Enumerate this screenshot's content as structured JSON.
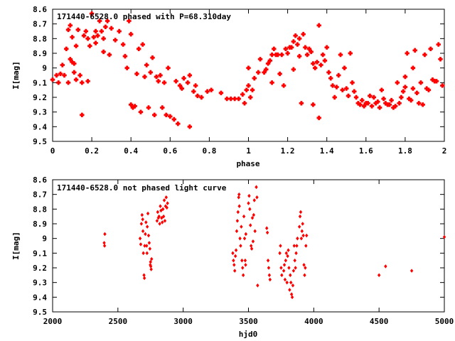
{
  "chart_data": [
    {
      "type": "scatter",
      "title": "171440-6528.0 phased with P=68.310day",
      "xlabel": "phase",
      "ylabel": "I[mag]",
      "xlim": [
        0,
        2
      ],
      "ylim": [
        9.5,
        8.6
      ],
      "y_inverted": true,
      "xticks": [
        0,
        0.2,
        0.4,
        0.6,
        0.8,
        1,
        1.2,
        1.4,
        1.6,
        1.8,
        2
      ],
      "xtick_labels": [
        "0",
        "0.2",
        "0.4",
        "0.6",
        "0.8",
        "1",
        "1.2",
        "1.4",
        "1.6",
        "1.8",
        "2"
      ],
      "yticks": [
        8.6,
        8.7,
        8.8,
        8.9,
        9.0,
        9.1,
        9.2,
        9.3,
        9.4,
        9.5
      ],
      "ytick_labels": [
        "8.6",
        "8.7",
        "8.8",
        "8.9",
        "9",
        "9.1",
        "9.2",
        "9.3",
        "9.4",
        "9.5"
      ],
      "grid": false,
      "color": "#ff0000",
      "marker": "cross",
      "points": [
        [
          0.0,
          9.08
        ],
        [
          0.02,
          9.05
        ],
        [
          0.03,
          9.1
        ],
        [
          0.04,
          9.04
        ],
        [
          0.05,
          8.98
        ],
        [
          0.06,
          9.05
        ],
        [
          0.07,
          8.87
        ],
        [
          0.08,
          8.74
        ],
        [
          0.08,
          9.1
        ],
        [
          0.09,
          8.94
        ],
        [
          0.09,
          8.71
        ],
        [
          0.1,
          8.96
        ],
        [
          0.1,
          8.79
        ],
        [
          0.11,
          9.03
        ],
        [
          0.11,
          8.97
        ],
        [
          0.12,
          8.85
        ],
        [
          0.12,
          9.08
        ],
        [
          0.13,
          8.74
        ],
        [
          0.14,
          9.05
        ],
        [
          0.15,
          9.1
        ],
        [
          0.15,
          9.32
        ],
        [
          0.16,
          8.78
        ],
        [
          0.17,
          8.75
        ],
        [
          0.18,
          9.09
        ],
        [
          0.18,
          8.8
        ],
        [
          0.19,
          8.85
        ],
        [
          0.2,
          8.63
        ],
        [
          0.21,
          8.79
        ],
        [
          0.22,
          8.83
        ],
        [
          0.22,
          8.75
        ],
        [
          0.23,
          8.78
        ],
        [
          0.24,
          8.68
        ],
        [
          0.25,
          8.75
        ],
        [
          0.26,
          8.8
        ],
        [
          0.26,
          8.89
        ],
        [
          0.27,
          8.72
        ],
        [
          0.28,
          8.68
        ],
        [
          0.29,
          8.91
        ],
        [
          0.3,
          8.73
        ],
        [
          0.32,
          8.81
        ],
        [
          0.34,
          8.75
        ],
        [
          0.36,
          8.84
        ],
        [
          0.37,
          8.92
        ],
        [
          0.38,
          9.0
        ],
        [
          0.39,
          8.68
        ],
        [
          0.4,
          9.25
        ],
        [
          0.4,
          8.77
        ],
        [
          0.41,
          9.27
        ],
        [
          0.42,
          9.26
        ],
        [
          0.43,
          9.04
        ],
        [
          0.44,
          8.87
        ],
        [
          0.45,
          9.3
        ],
        [
          0.46,
          8.84
        ],
        [
          0.47,
          9.06
        ],
        [
          0.48,
          8.98
        ],
        [
          0.49,
          9.27
        ],
        [
          0.5,
          9.03
        ],
        [
          0.51,
          8.93
        ],
        [
          0.52,
          9.32
        ],
        [
          0.53,
          9.06
        ],
        [
          0.54,
          9.09
        ],
        [
          0.55,
          9.05
        ],
        [
          0.56,
          9.27
        ],
        [
          0.57,
          9.1
        ],
        [
          0.58,
          9.32
        ],
        [
          0.59,
          9.0
        ],
        [
          0.6,
          9.33
        ],
        [
          0.62,
          9.35
        ],
        [
          0.63,
          9.09
        ],
        [
          0.64,
          9.38
        ],
        [
          0.65,
          9.12
        ],
        [
          0.66,
          9.14
        ],
        [
          0.67,
          9.07
        ],
        [
          0.69,
          9.1
        ],
        [
          0.7,
          9.4
        ],
        [
          0.7,
          9.05
        ],
        [
          0.72,
          9.16
        ],
        [
          0.73,
          9.12
        ],
        [
          0.74,
          9.19
        ],
        [
          0.76,
          9.2
        ],
        [
          0.79,
          9.16
        ],
        [
          0.81,
          9.15
        ],
        [
          0.86,
          9.17
        ],
        [
          0.89,
          9.21
        ],
        [
          0.91,
          9.21
        ],
        [
          0.93,
          9.21
        ],
        [
          0.95,
          9.21
        ],
        [
          0.97,
          9.18
        ],
        [
          0.98,
          9.24
        ],
        [
          0.99,
          9.15
        ],
        [
          1.0,
          9.12
        ],
        [
          1.0,
          9.0
        ],
        [
          1.01,
          9.2
        ],
        [
          1.02,
          9.15
        ],
        [
          1.03,
          9.07
        ],
        [
          1.05,
          9.03
        ],
        [
          1.06,
          8.94
        ],
        [
          1.08,
          9.03
        ],
        [
          1.09,
          9.01
        ],
        [
          1.1,
          8.97
        ],
        [
          1.11,
          8.95
        ],
        [
          1.12,
          8.91
        ],
        [
          1.12,
          9.1
        ],
        [
          1.13,
          8.87
        ],
        [
          1.14,
          8.91
        ],
        [
          1.15,
          8.91
        ],
        [
          1.16,
          9.04
        ],
        [
          1.17,
          8.91
        ],
        [
          1.18,
          9.12
        ],
        [
          1.19,
          8.87
        ],
        [
          1.2,
          8.9
        ],
        [
          1.21,
          8.86
        ],
        [
          1.22,
          8.86
        ],
        [
          1.23,
          8.82
        ],
        [
          1.23,
          9.01
        ],
        [
          1.24,
          8.78
        ],
        [
          1.25,
          8.84
        ],
        [
          1.26,
          8.8
        ],
        [
          1.26,
          8.92
        ],
        [
          1.27,
          9.24
        ],
        [
          1.28,
          8.77
        ],
        [
          1.29,
          8.86
        ],
        [
          1.3,
          8.91
        ],
        [
          1.31,
          8.87
        ],
        [
          1.32,
          8.89
        ],
        [
          1.33,
          8.97
        ],
        [
          1.33,
          9.25
        ],
        [
          1.34,
          9.0
        ],
        [
          1.35,
          8.96
        ],
        [
          1.36,
          8.71
        ],
        [
          1.36,
          9.34
        ],
        [
          1.37,
          8.98
        ],
        [
          1.38,
          8.91
        ],
        [
          1.39,
          8.95
        ],
        [
          1.4,
          8.86
        ],
        [
          1.41,
          9.03
        ],
        [
          1.42,
          9.07
        ],
        [
          1.43,
          9.12
        ],
        [
          1.44,
          9.2
        ],
        [
          1.45,
          9.13
        ],
        [
          1.46,
          9.05
        ],
        [
          1.47,
          8.91
        ],
        [
          1.48,
          9.15
        ],
        [
          1.49,
          9.0
        ],
        [
          1.5,
          9.14
        ],
        [
          1.51,
          9.19
        ],
        [
          1.52,
          8.9
        ],
        [
          1.53,
          9.1
        ],
        [
          1.54,
          9.16
        ],
        [
          1.55,
          9.2
        ],
        [
          1.56,
          9.24
        ],
        [
          1.57,
          9.25
        ],
        [
          1.58,
          9.22
        ],
        [
          1.59,
          9.26
        ],
        [
          1.6,
          9.24
        ],
        [
          1.61,
          9.24
        ],
        [
          1.62,
          9.19
        ],
        [
          1.63,
          9.26
        ],
        [
          1.64,
          9.2
        ],
        [
          1.65,
          9.24
        ],
        [
          1.66,
          9.23
        ],
        [
          1.67,
          9.27
        ],
        [
          1.68,
          9.15
        ],
        [
          1.69,
          9.21
        ],
        [
          1.7,
          9.24
        ],
        [
          1.71,
          9.25
        ],
        [
          1.72,
          9.25
        ],
        [
          1.73,
          9.22
        ],
        [
          1.74,
          9.27
        ],
        [
          1.75,
          9.26
        ],
        [
          1.76,
          9.1
        ],
        [
          1.77,
          9.24
        ],
        [
          1.78,
          9.2
        ],
        [
          1.79,
          9.16
        ],
        [
          1.8,
          9.13
        ],
        [
          1.8,
          9.06
        ],
        [
          1.81,
          8.9
        ],
        [
          1.82,
          9.21
        ],
        [
          1.83,
          9.22
        ],
        [
          1.84,
          9.0
        ],
        [
          1.84,
          9.14
        ],
        [
          1.85,
          8.88
        ],
        [
          1.86,
          9.17
        ],
        [
          1.87,
          9.24
        ],
        [
          1.88,
          9.1
        ],
        [
          1.89,
          9.25
        ],
        [
          1.9,
          8.91
        ],
        [
          1.91,
          9.14
        ],
        [
          1.92,
          9.15
        ],
        [
          1.93,
          8.87
        ],
        [
          1.94,
          9.08
        ],
        [
          1.95,
          9.09
        ],
        [
          1.96,
          9.09
        ],
        [
          1.97,
          8.84
        ],
        [
          1.98,
          8.94
        ],
        [
          1.99,
          9.12
        ]
      ]
    },
    {
      "type": "scatter",
      "title": "171440-6528.0 not phased light curve",
      "xlabel": "hjd0",
      "ylabel": "I[mag]",
      "xlim": [
        2000,
        5000
      ],
      "ylim": [
        9.5,
        8.6
      ],
      "y_inverted": true,
      "xticks": [
        2000,
        2500,
        3000,
        3500,
        4000,
        4500,
        5000
      ],
      "xtick_labels": [
        "2000",
        "2500",
        "3000",
        "3500",
        "4000",
        "4500",
        "5000"
      ],
      "yticks": [
        8.6,
        8.7,
        8.8,
        8.9,
        9.0,
        9.1,
        9.2,
        9.3,
        9.4,
        9.5
      ],
      "ytick_labels": [
        "8.6",
        "8.7",
        "8.8",
        "8.9",
        "9",
        "9.1",
        "9.2",
        "9.3",
        "9.4",
        "9.5"
      ],
      "grid": false,
      "color": "#ff0000",
      "marker": "diamond",
      "points": [
        [
          2395,
          9.03
        ],
        [
          2398,
          9.05
        ],
        [
          2400,
          8.97
        ],
        [
          2670,
          9.0
        ],
        [
          2675,
          9.04
        ],
        [
          2680,
          8.9
        ],
        [
          2685,
          8.84
        ],
        [
          2690,
          8.87
        ],
        [
          2692,
          8.95
        ],
        [
          2695,
          9.1
        ],
        [
          2700,
          9.25
        ],
        [
          2703,
          9.27
        ],
        [
          2705,
          9.05
        ],
        [
          2710,
          8.97
        ],
        [
          2715,
          8.89
        ],
        [
          2720,
          9.05
        ],
        [
          2723,
          9.1
        ],
        [
          2725,
          8.92
        ],
        [
          2730,
          8.83
        ],
        [
          2735,
          8.98
        ],
        [
          2740,
          9.03
        ],
        [
          2745,
          9.07
        ],
        [
          2748,
          9.18
        ],
        [
          2750,
          9.16
        ],
        [
          2752,
          9.19
        ],
        [
          2755,
          9.21
        ],
        [
          2758,
          9.14
        ],
        [
          2800,
          8.88
        ],
        [
          2805,
          8.82
        ],
        [
          2810,
          8.86
        ],
        [
          2815,
          8.85
        ],
        [
          2820,
          8.9
        ],
        [
          2825,
          8.78
        ],
        [
          2830,
          8.81
        ],
        [
          2835,
          8.86
        ],
        [
          2840,
          8.89
        ],
        [
          2845,
          8.8
        ],
        [
          2850,
          8.85
        ],
        [
          2855,
          8.74
        ],
        [
          2860,
          8.88
        ],
        [
          2865,
          8.78
        ],
        [
          2870,
          8.72
        ],
        [
          2875,
          8.79
        ],
        [
          2880,
          8.76
        ],
        [
          3380,
          9.1
        ],
        [
          3385,
          9.15
        ],
        [
          3390,
          9.18
        ],
        [
          3395,
          9.22
        ],
        [
          3400,
          9.12
        ],
        [
          3405,
          9.08
        ],
        [
          3410,
          8.95
        ],
        [
          3415,
          8.88
        ],
        [
          3420,
          8.82
        ],
        [
          3425,
          8.72
        ],
        [
          3428,
          8.7
        ],
        [
          3430,
          8.78
        ],
        [
          3435,
          9.0
        ],
        [
          3440,
          9.05
        ],
        [
          3445,
          8.92
        ],
        [
          3450,
          9.15
        ],
        [
          3455,
          9.2
        ],
        [
          3460,
          9.25
        ],
        [
          3465,
          8.85
        ],
        [
          3470,
          9.0
        ],
        [
          3475,
          9.15
        ],
        [
          3478,
          9.18
        ],
        [
          3480,
          8.97
        ],
        [
          3500,
          8.76
        ],
        [
          3505,
          8.71
        ],
        [
          3510,
          8.8
        ],
        [
          3515,
          8.91
        ],
        [
          3520,
          9.05
        ],
        [
          3525,
          9.07
        ],
        [
          3530,
          8.86
        ],
        [
          3535,
          9.02
        ],
        [
          3540,
          8.84
        ],
        [
          3545,
          8.74
        ],
        [
          3550,
          8.95
        ],
        [
          3560,
          8.65
        ],
        [
          3565,
          8.72
        ],
        [
          3570,
          9.32
        ],
        [
          3640,
          8.93
        ],
        [
          3645,
          8.96
        ],
        [
          3650,
          9.15
        ],
        [
          3655,
          9.2
        ],
        [
          3660,
          9.25
        ],
        [
          3665,
          9.28
        ],
        [
          3740,
          9.1
        ],
        [
          3745,
          9.05
        ],
        [
          3750,
          9.2
        ],
        [
          3755,
          9.25
        ],
        [
          3770,
          9.22
        ],
        [
          3775,
          9.18
        ],
        [
          3780,
          9.28
        ],
        [
          3785,
          9.15
        ],
        [
          3790,
          9.1
        ],
        [
          3795,
          9.3
        ],
        [
          3800,
          9.12
        ],
        [
          3805,
          9.08
        ],
        [
          3810,
          9.2
        ],
        [
          3815,
          9.35
        ],
        [
          3820,
          9.25
        ],
        [
          3825,
          9.3
        ],
        [
          3830,
          9.38
        ],
        [
          3835,
          9.4
        ],
        [
          3840,
          9.32
        ],
        [
          3845,
          9.22
        ],
        [
          3850,
          9.05
        ],
        [
          3855,
          9.15
        ],
        [
          3860,
          9.2
        ],
        [
          3865,
          9.1
        ],
        [
          3870,
          9.05
        ],
        [
          3875,
          9.0
        ],
        [
          3890,
          8.92
        ],
        [
          3895,
          8.85
        ],
        [
          3900,
          8.82
        ],
        [
          3905,
          9.0
        ],
        [
          3910,
          8.95
        ],
        [
          3915,
          8.9
        ],
        [
          3920,
          8.98
        ],
        [
          3925,
          9.18
        ],
        [
          3930,
          9.25
        ],
        [
          3935,
          9.2
        ],
        [
          3940,
          9.05
        ],
        [
          3945,
          8.98
        ],
        [
          4500,
          9.25
        ],
        [
          4550,
          9.19
        ],
        [
          4750,
          9.22
        ],
        [
          5000,
          8.99
        ]
      ]
    }
  ]
}
